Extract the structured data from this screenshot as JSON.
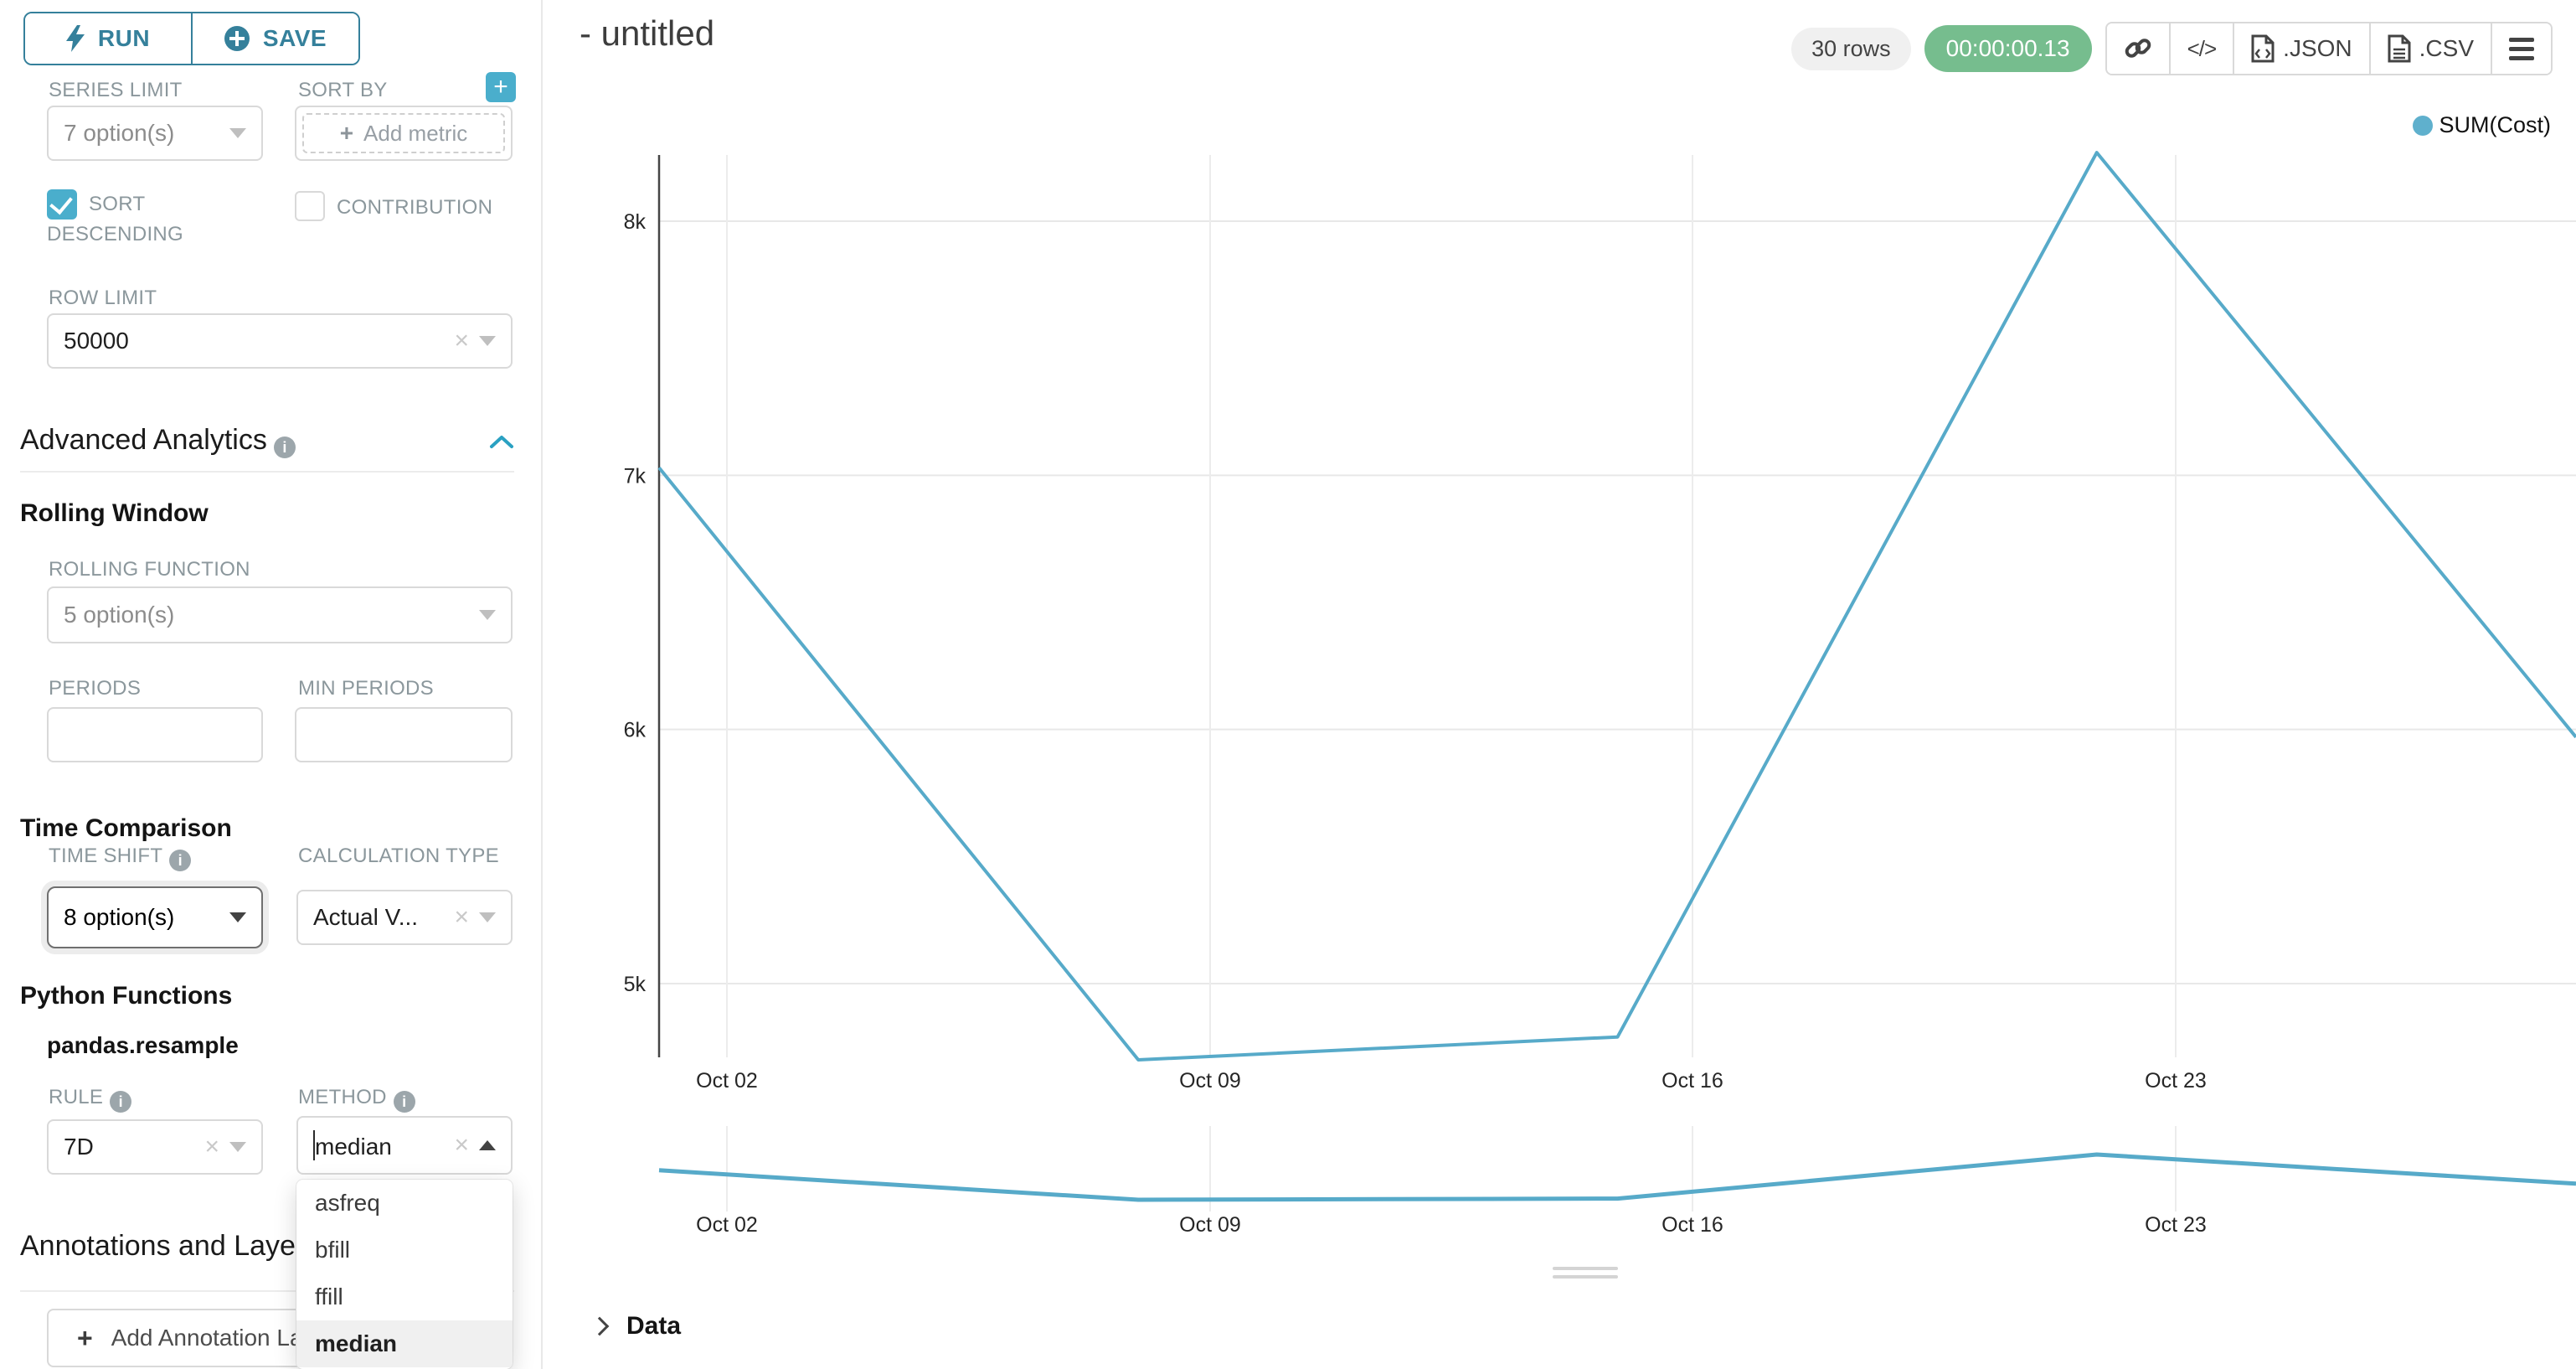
{
  "sidebar": {
    "run_label": "RUN",
    "save_label": "SAVE",
    "series_limit": {
      "label": "SERIES LIMIT",
      "value": "7 option(s)"
    },
    "sort_by": {
      "label": "SORT BY",
      "placeholder": "Add metric"
    },
    "sort_descending_label_line1": "SORT",
    "sort_descending_label_line2": "DESCENDING",
    "sort_descending_checked": true,
    "contribution_label": "CONTRIBUTION",
    "contribution_checked": false,
    "row_limit": {
      "label": "ROW LIMIT",
      "value": "50000"
    },
    "advanced_analytics_title": "Advanced Analytics",
    "rolling_window": {
      "title": "Rolling Window",
      "rolling_function_label": "ROLLING FUNCTION",
      "rolling_function_value": "5 option(s)",
      "periods_label": "PERIODS",
      "min_periods_label": "MIN PERIODS"
    },
    "time_comparison": {
      "title": "Time Comparison",
      "time_shift_label": "TIME SHIFT",
      "time_shift_value": "8 option(s)",
      "calculation_type_label": "CALCULATION TYPE",
      "calculation_type_value": "Actual V..."
    },
    "python_functions": {
      "title": "Python Functions",
      "subtitle": "pandas.resample",
      "rule_label": "RULE",
      "rule_value": "7D",
      "method_label": "METHOD",
      "method_input_value": "median",
      "method_options": [
        "asfreq",
        "bfill",
        "ffill",
        "median"
      ],
      "method_selected": "median"
    },
    "annotations_title": "Annotations and Layers",
    "add_annotation_label": "Add Annotation Layer"
  },
  "header": {
    "title": "- untitled",
    "rows_badge": "30 rows",
    "timer": "00:00:00.13",
    "json_label": ".JSON",
    "csv_label": ".CSV"
  },
  "data_panel": {
    "title": "Data"
  },
  "chart_data": {
    "type": "line",
    "title": "",
    "x": [
      "Oct 01",
      "Oct 08",
      "Oct 15",
      "Oct 22",
      "Oct 29"
    ],
    "series": [
      {
        "name": "SUM(Cost)",
        "values": [
          7030,
          4700,
          4790,
          8270,
          5970
        ]
      }
    ],
    "xticks": [
      "Oct 02",
      "Oct 09",
      "Oct 16",
      "Oct 23"
    ],
    "yticks": [
      {
        "label": "8k",
        "value": 8000
      },
      {
        "label": "7k",
        "value": 7000
      },
      {
        "label": "6k",
        "value": 6000
      },
      {
        "label": "5k",
        "value": 5000
      }
    ],
    "legend": [
      "SUM(Cost)"
    ],
    "legend_position": "top-right",
    "grid": true,
    "has_preview_strip": true
  },
  "colors": {
    "run_save_teal": "#35809B",
    "control_teal": "#4AAECC",
    "line_teal": "#57AAC9",
    "legend_dot": "#5FB0CD",
    "timer_green": "#76BD8E",
    "label_gray": "#8B979C",
    "border_gray": "#d9d9d9",
    "grid_gray": "#e8e8e8"
  }
}
